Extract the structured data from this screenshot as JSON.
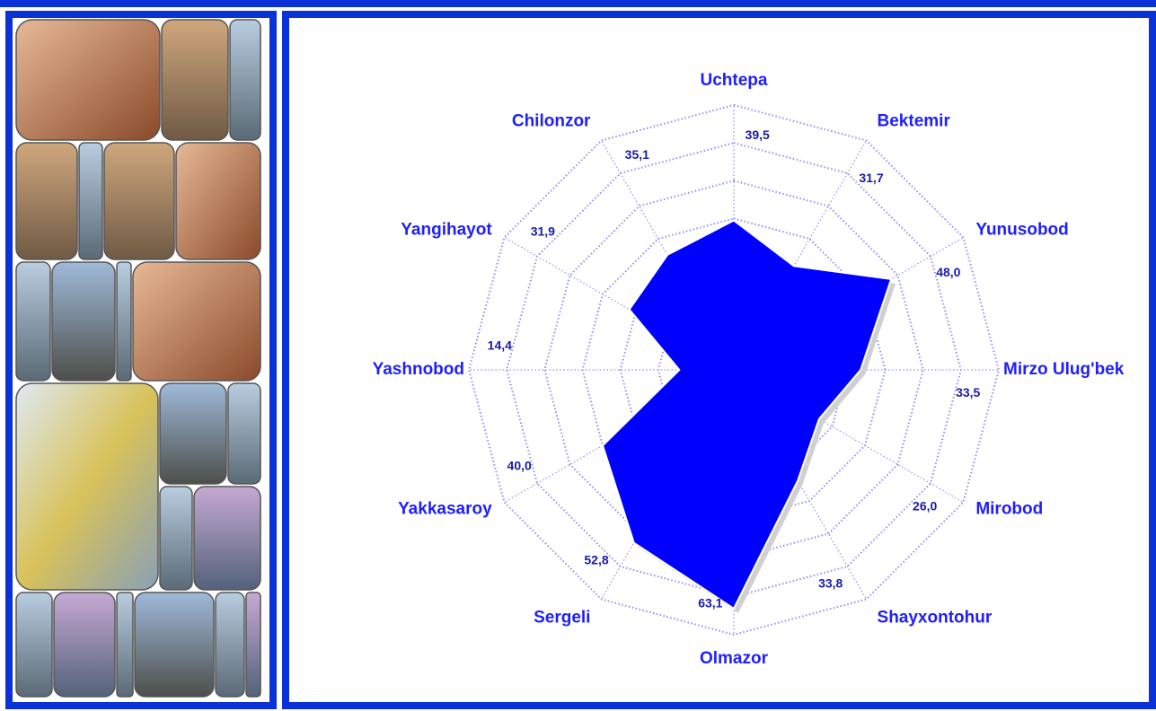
{
  "chart_data": {
    "type": "radar",
    "categories": [
      "Uchtepa",
      "Bektemir",
      "Yunusobod",
      "Mirzo Ulug'bek",
      "Mirobod",
      "Shayxontohur",
      "Olmazor",
      "Sergeli",
      "Yakkasaroy",
      "Yashnobod",
      "Yangihayot",
      "Chilonzor"
    ],
    "values": [
      39.5,
      31.7,
      48.0,
      33.5,
      26.0,
      33.8,
      63.1,
      52.8,
      40.0,
      14.4,
      31.9,
      35.1
    ],
    "value_labels": [
      "39,5",
      "31,7",
      "48,0",
      "33,5",
      "26,0",
      "33,8",
      "63,1",
      "52,8",
      "40,0",
      "14,4",
      "31,9",
      "35,1"
    ],
    "color": "#0000ff",
    "ylim": [
      0,
      70
    ],
    "rings": [
      10,
      20,
      30,
      40,
      50,
      60,
      70
    ],
    "grid": true
  }
}
